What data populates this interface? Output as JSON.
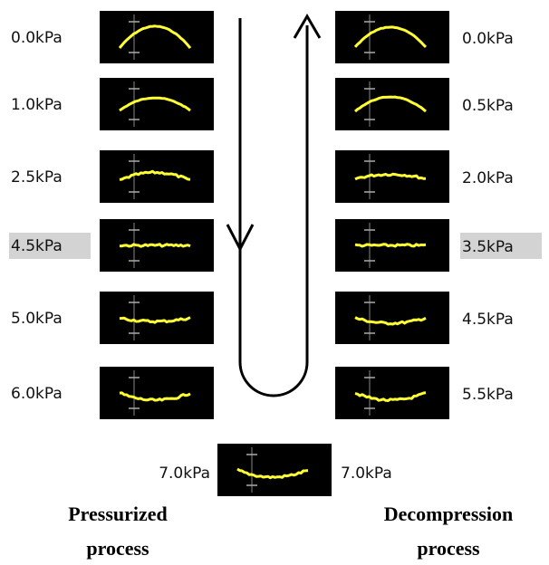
{
  "pressurized": {
    "labels": [
      "0.0kPa",
      "1.0kPa",
      "2.5kPa",
      "4.5kPa",
      "5.0kPa",
      "6.0kPa"
    ],
    "caption": [
      "Pressurized",
      "process"
    ]
  },
  "decompression": {
    "labels": [
      "0.0kPa",
      "0.5kPa",
      "2.0kPa",
      "3.5kPa",
      "4.5kPa",
      "5.5kPa"
    ],
    "caption": [
      "Decompression",
      "process"
    ]
  },
  "bottom": {
    "left_label": "7.0kPa",
    "right_label": "7.0kPa"
  }
}
